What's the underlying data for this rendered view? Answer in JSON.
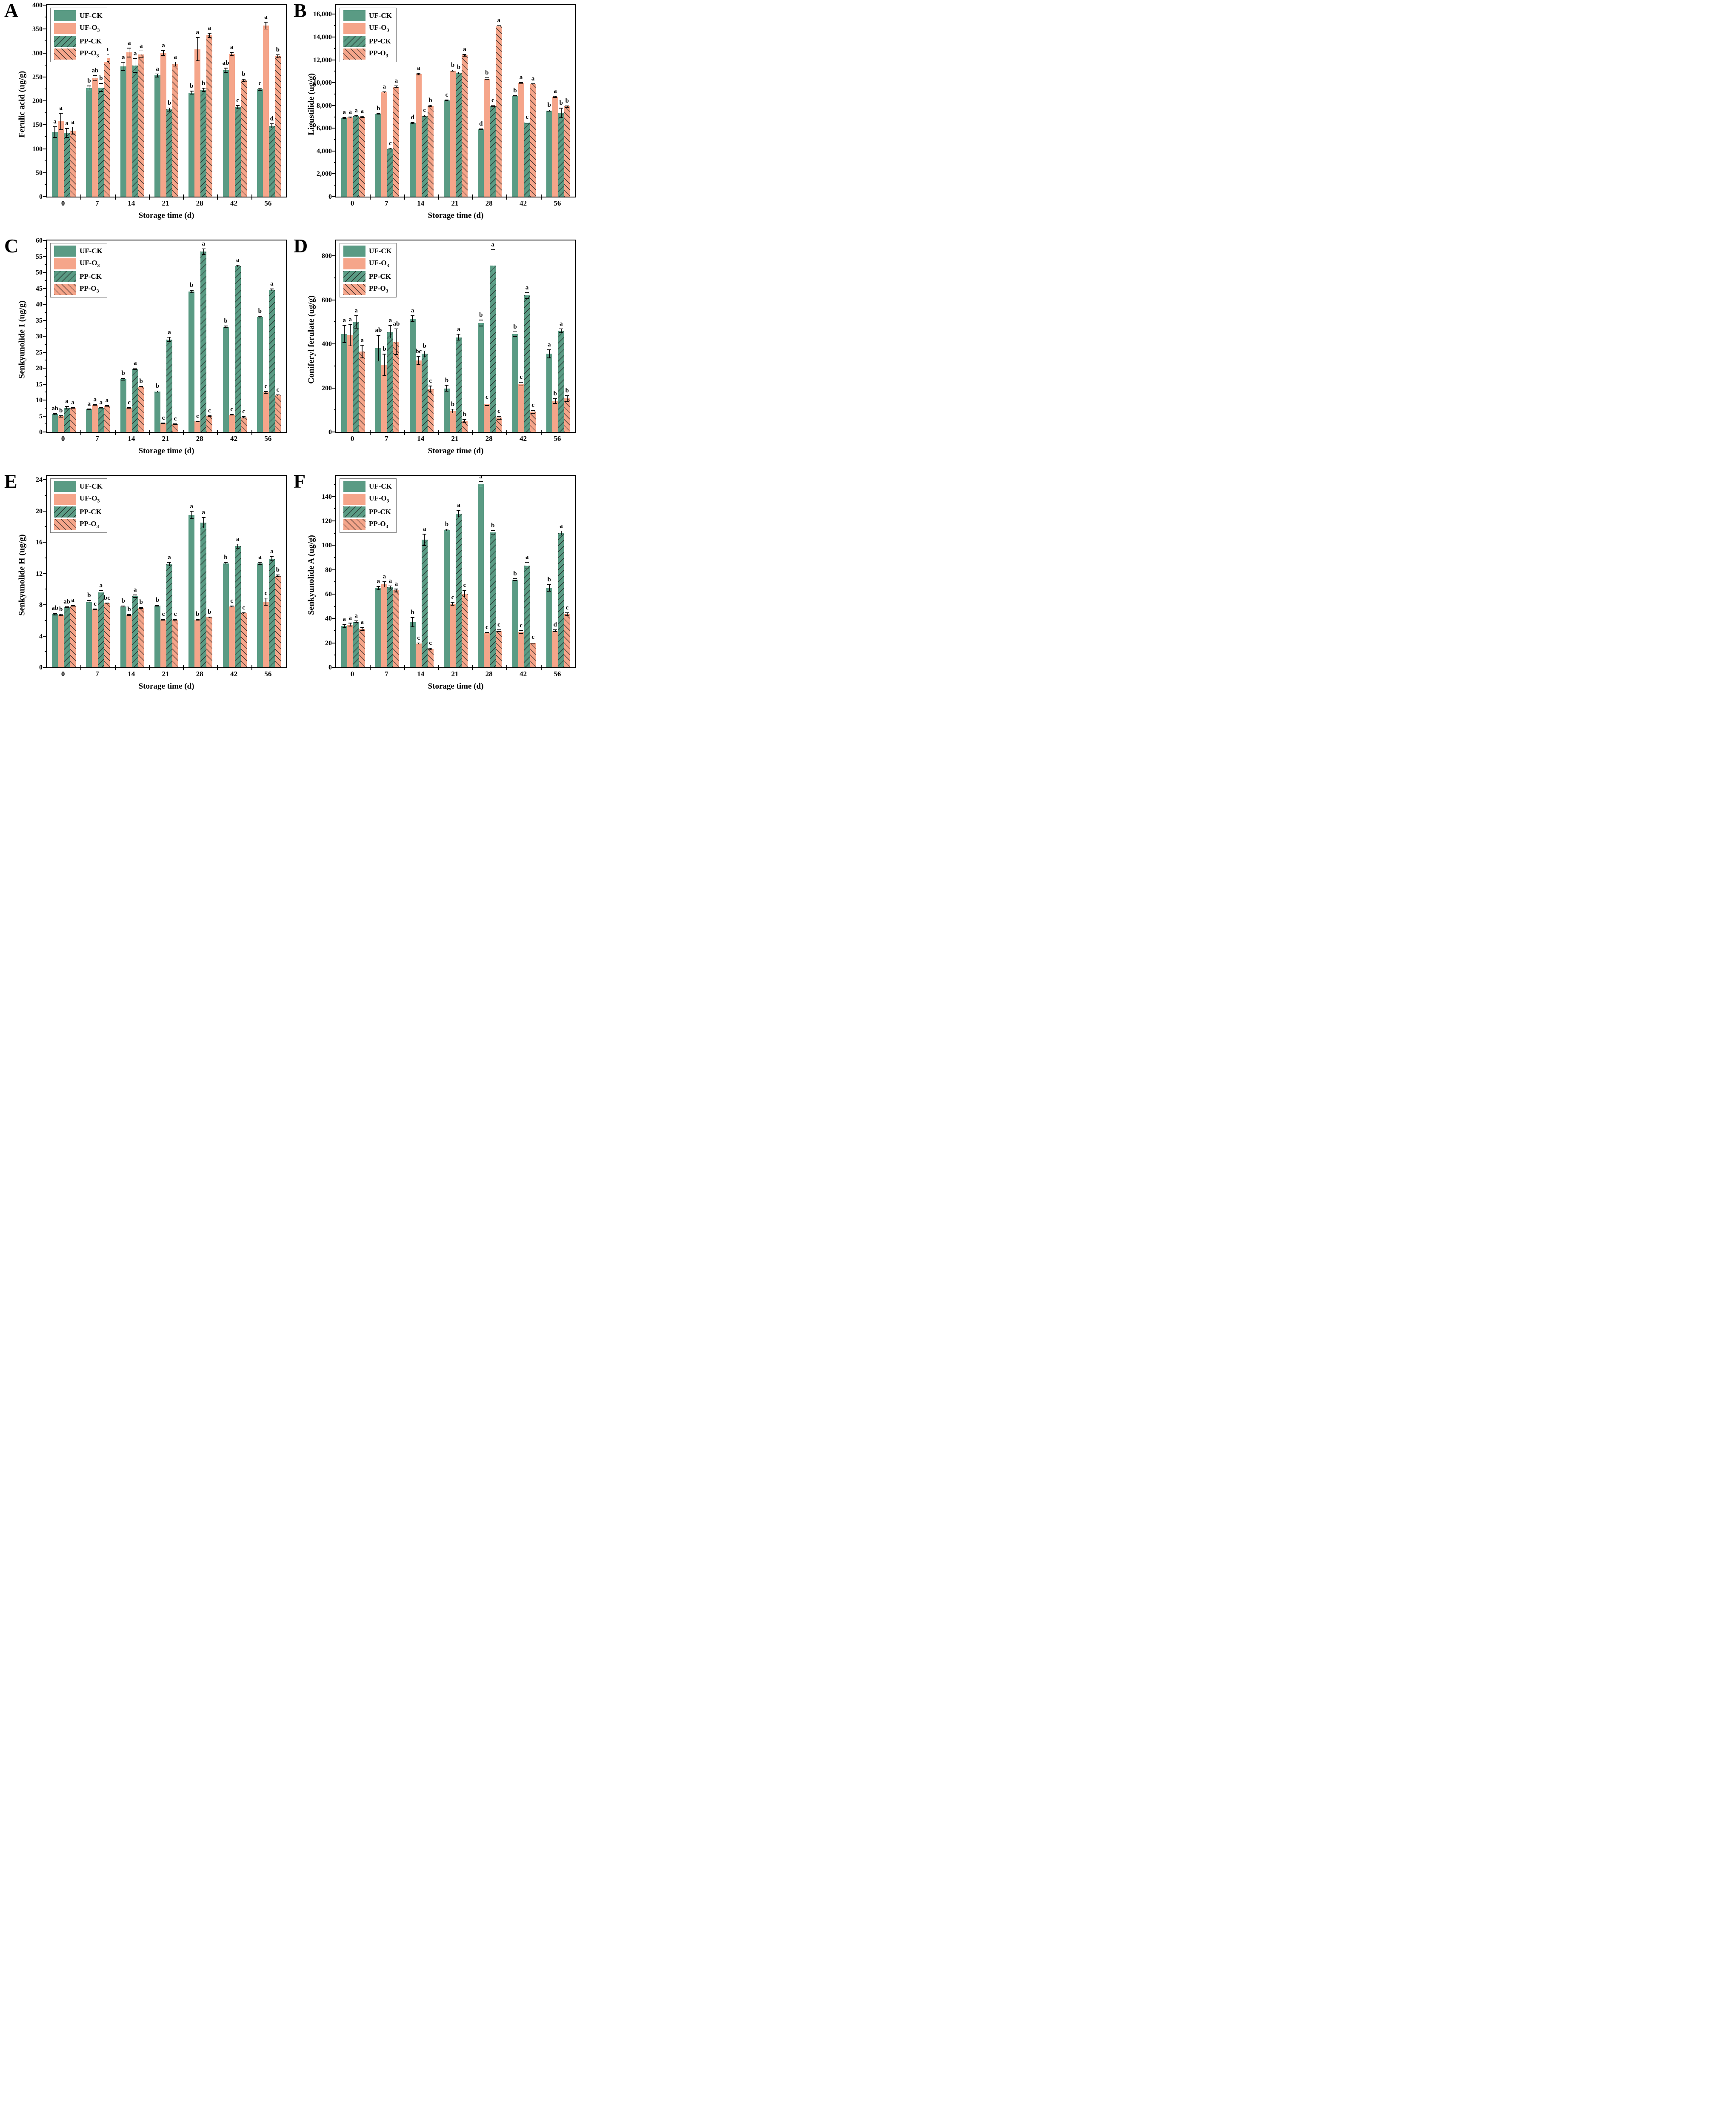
{
  "figure": {
    "xlabel": "Storage time (d)",
    "categories": [
      "0",
      "7",
      "14",
      "21",
      "28",
      "42",
      "56"
    ],
    "series_labels": [
      "UF-CK",
      "UF-O3",
      "PP-CK",
      "PP-O3"
    ],
    "colors": {
      "green": "#5a9b84",
      "salmon": "#f5a58a",
      "hatch_line": "#191919",
      "frame": "#000000"
    }
  },
  "chart_data": [
    {
      "panel": "A",
      "type": "bar",
      "ylabel": "Ferulic acid (ug/g)",
      "xlabel": "Storage time (d)",
      "categories": [
        "0",
        "7",
        "14",
        "21",
        "28",
        "42",
        "56"
      ],
      "ylim": [
        0,
        400
      ],
      "ytick": 50,
      "legend_position": "top-left",
      "grid": false,
      "series": [
        {
          "name": "UF-CK",
          "values": [
            135,
            227,
            272,
            253,
            217,
            264,
            224
          ],
          "errors": [
            12,
            5,
            9,
            4,
            4,
            5,
            3
          ],
          "letters": [
            "a",
            "b",
            "a",
            "a",
            "b",
            "ab",
            "c"
          ]
        },
        {
          "name": "UF-O3",
          "values": [
            157,
            247,
            301,
            300,
            308,
            298,
            357
          ],
          "errors": [
            18,
            6,
            10,
            6,
            25,
            4,
            8
          ],
          "letters": [
            "a",
            "ab",
            "a",
            "a",
            "a",
            "a",
            "a"
          ]
        },
        {
          "name": "PP-CK",
          "values": [
            133,
            228,
            274,
            182,
            223,
            187,
            148
          ],
          "errors": [
            10,
            9,
            15,
            4,
            4,
            4,
            5
          ],
          "letters": [
            "a",
            "b",
            "a",
            "b",
            "b",
            "c",
            "d"
          ]
        },
        {
          "name": "PP-O3",
          "values": [
            138,
            290,
            297,
            277,
            337,
            243,
            293
          ],
          "errors": [
            8,
            8,
            8,
            5,
            5,
            3,
            4
          ],
          "letters": [
            "a",
            "a",
            "a",
            "a",
            "a",
            "b",
            "b"
          ]
        }
      ]
    },
    {
      "panel": "B",
      "type": "bar",
      "ylabel": "Ligustilide (ug/g)",
      "xlabel": "Storage time (d)",
      "categories": [
        "0",
        "7",
        "14",
        "21",
        "28",
        "42",
        "56"
      ],
      "ylim": [
        0,
        16800
      ],
      "ytick": 2000,
      "legend_position": "top-left",
      "grid": false,
      "series": [
        {
          "name": "UF-CK",
          "values": [
            6900,
            7250,
            6450,
            8450,
            5900,
            8800,
            7550
          ],
          "errors": [
            80,
            60,
            80,
            60,
            60,
            80,
            80
          ],
          "letters": [
            "a",
            "b",
            "d",
            "c",
            "d",
            "b",
            "b"
          ]
        },
        {
          "name": "UF-O3",
          "values": [
            6950,
            9150,
            10750,
            11050,
            10350,
            9950,
            8750
          ],
          "errors": [
            80,
            80,
            100,
            80,
            100,
            80,
            80
          ],
          "letters": [
            "a",
            "a",
            "a",
            "b",
            "b",
            "a",
            "a"
          ]
        },
        {
          "name": "PP-CK",
          "values": [
            7050,
            4200,
            7100,
            10850,
            7950,
            6500,
            7350
          ],
          "errors": [
            80,
            60,
            80,
            100,
            80,
            80,
            450
          ],
          "letters": [
            "a",
            "c",
            "c",
            "b",
            "c",
            "c",
            "b"
          ]
        },
        {
          "name": "PP-O3",
          "values": [
            7000,
            9650,
            7950,
            12400,
            14950,
            9850,
            7900
          ],
          "errors": [
            80,
            100,
            80,
            100,
            100,
            80,
            80
          ],
          "letters": [
            "a",
            "a",
            "b",
            "a",
            "a",
            "a",
            "b"
          ]
        }
      ]
    },
    {
      "panel": "C",
      "type": "bar",
      "ylabel": "Senkyunolide I (ug/g)",
      "xlabel": "Storage time (d)",
      "categories": [
        "0",
        "7",
        "14",
        "21",
        "28",
        "42",
        "56"
      ],
      "ylim": [
        0,
        60
      ],
      "ytick": 5,
      "legend_position": "top-left",
      "grid": false,
      "series": [
        {
          "name": "UF-CK",
          "values": [
            5.6,
            7.2,
            16.5,
            12.7,
            44,
            33,
            36
          ],
          "errors": [
            0.3,
            0.2,
            0.4,
            0.3,
            0.5,
            0.3,
            0.4
          ],
          "letters": [
            "ab",
            "a",
            "b",
            "b",
            "b",
            "b",
            "b"
          ]
        },
        {
          "name": "UF-O3",
          "values": [
            4.9,
            8.5,
            7.5,
            2.8,
            3.3,
            5.4,
            12.4
          ],
          "errors": [
            0.3,
            0.2,
            0.2,
            0.2,
            0.2,
            0.2,
            0.4
          ],
          "letters": [
            "b",
            "a",
            "c",
            "c",
            "c",
            "c",
            "c"
          ]
        },
        {
          "name": "PP-CK",
          "values": [
            7.6,
            7.5,
            19.8,
            29,
            56.5,
            52,
            44.5
          ],
          "errors": [
            0.5,
            0.3,
            0.3,
            0.8,
            1.0,
            0.4,
            0.4
          ],
          "letters": [
            "a",
            "a",
            "a",
            "a",
            "a",
            "a",
            "a"
          ]
        },
        {
          "name": "PP-O3",
          "values": [
            7.6,
            8.1,
            14.2,
            2.5,
            5.0,
            4.6,
            11.5
          ],
          "errors": [
            0.2,
            0.3,
            0.2,
            0.2,
            0.2,
            0.3,
            0.3
          ],
          "letters": [
            "a",
            "a",
            "b",
            "c",
            "c",
            "c",
            "c"
          ]
        }
      ]
    },
    {
      "panel": "D",
      "type": "bar",
      "ylabel": "Coniferyl ferulate (ug/g)",
      "xlabel": "Storage time (d)",
      "categories": [
        "0",
        "7",
        "14",
        "21",
        "28",
        "42",
        "56"
      ],
      "ylim": [
        0,
        870
      ],
      "ytick": 200,
      "legend_position": "top-left",
      "grid": false,
      "series": [
        {
          "name": "UF-CK",
          "values": [
            445,
            380,
            515,
            198,
            495,
            445,
            355
          ],
          "errors": [
            40,
            60,
            15,
            15,
            15,
            12,
            20
          ],
          "letters": [
            "a",
            "ab",
            "a",
            "b",
            "b",
            "b",
            "a"
          ]
        },
        {
          "name": "UF-O3",
          "values": [
            440,
            305,
            325,
            95,
            128,
            218,
            140
          ],
          "errors": [
            50,
            50,
            20,
            10,
            10,
            10,
            12
          ],
          "letters": [
            "a",
            "b",
            "bc",
            "b",
            "c",
            "c",
            "b"
          ]
        },
        {
          "name": "PP-CK",
          "values": [
            500,
            455,
            355,
            430,
            755,
            620,
            460
          ],
          "errors": [
            30,
            30,
            15,
            15,
            75,
            15,
            10
          ],
          "letters": [
            "a",
            "a",
            "b",
            "a",
            "a",
            "a",
            "a"
          ]
        },
        {
          "name": "PP-O3",
          "values": [
            365,
            410,
            195,
            50,
            65,
            92,
            152
          ],
          "errors": [
            30,
            60,
            15,
            8,
            8,
            8,
            15
          ],
          "letters": [
            "a",
            "ab",
            "c",
            "b",
            "c",
            "c",
            "b"
          ]
        }
      ]
    },
    {
      "panel": "E",
      "type": "bar",
      "ylabel": "Senkyunolide H (ug/g)",
      "xlabel": "Storage time (d)",
      "categories": [
        "0",
        "7",
        "14",
        "21",
        "28",
        "42",
        "56"
      ],
      "ylim": [
        0,
        24.5
      ],
      "ytick": 4,
      "legend_position": "top-left",
      "grid": false,
      "series": [
        {
          "name": "UF-CK",
          "values": [
            6.8,
            8.4,
            7.8,
            7.9,
            19.5,
            13.3,
            13.3
          ],
          "errors": [
            0.15,
            0.2,
            0.1,
            0.1,
            0.5,
            0.15,
            0.2
          ],
          "letters": [
            "ab",
            "b",
            "b",
            "b",
            "a",
            "b",
            "a"
          ]
        },
        {
          "name": "UF-O3",
          "values": [
            6.7,
            7.4,
            6.7,
            6.1,
            6.1,
            7.8,
            8.4
          ],
          "errors": [
            0.12,
            0.1,
            0.1,
            0.1,
            0.1,
            0.12,
            0.5
          ],
          "letters": [
            "b",
            "c",
            "b",
            "c",
            "b",
            "c",
            "c"
          ]
        },
        {
          "name": "PP-CK",
          "values": [
            7.7,
            9.6,
            9.1,
            13.2,
            18.5,
            15.5,
            13.9
          ],
          "errors": [
            0.1,
            0.25,
            0.2,
            0.25,
            0.7,
            0.3,
            0.3
          ],
          "letters": [
            "ab",
            "a",
            "a",
            "a",
            "a",
            "a",
            "a"
          ]
        },
        {
          "name": "PP-O3",
          "values": [
            7.9,
            8.2,
            7.6,
            6.1,
            6.4,
            6.9,
            11.7
          ],
          "errors": [
            0.1,
            0.1,
            0.12,
            0.1,
            0.1,
            0.1,
            0.15
          ],
          "letters": [
            "a",
            "bc",
            "b",
            "c",
            "b",
            "c",
            "b"
          ]
        }
      ]
    },
    {
      "panel": "F",
      "type": "bar",
      "ylabel": "Senkyunolide A (ug/g)",
      "xlabel": "Storage time (d)",
      "categories": [
        "0",
        "7",
        "14",
        "21",
        "28",
        "42",
        "56"
      ],
      "ylim": [
        0,
        157
      ],
      "ytick": 20,
      "legend_position": "top-left",
      "grid": false,
      "series": [
        {
          "name": "UF-CK",
          "values": [
            34,
            65,
            37,
            112.5,
            150,
            72,
            65
          ],
          "errors": [
            1.5,
            1.5,
            4,
            1,
            2.5,
            1,
            3
          ],
          "letters": [
            "a",
            "a",
            "b",
            "b",
            "a",
            "b",
            "b"
          ]
        },
        {
          "name": "UF-O3",
          "values": [
            35,
            68,
            19.5,
            52,
            28,
            29,
            30
          ],
          "errors": [
            1.5,
            2.5,
            0.8,
            1.5,
            0.8,
            1.5,
            1
          ],
          "letters": [
            "a",
            "a",
            "c",
            "c",
            "c",
            "c",
            "d"
          ]
        },
        {
          "name": "PP-CK",
          "values": [
            37.5,
            65.5,
            104.5,
            126,
            110.5,
            83.5,
            110
          ],
          "errors": [
            1,
            1.5,
            5,
            3,
            2,
            3,
            2
          ],
          "letters": [
            "a",
            "a",
            "a",
            "a",
            "b",
            "a",
            "a"
          ]
        },
        {
          "name": "PP-O3",
          "values": [
            31.5,
            63,
            15,
            60.5,
            30,
            20,
            43.5
          ],
          "errors": [
            1.5,
            1.5,
            1,
            3,
            1,
            1,
            1.5
          ],
          "letters": [
            "a",
            "a",
            "c",
            "c",
            "c",
            "c",
            "c"
          ]
        }
      ]
    }
  ]
}
